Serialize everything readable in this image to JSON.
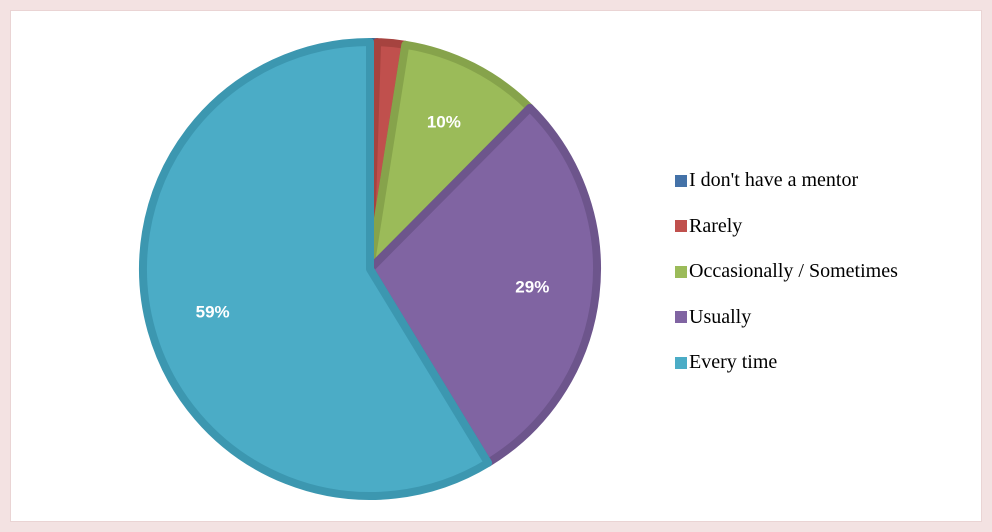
{
  "chart_data": {
    "type": "pie",
    "categories": [
      "I don't have a mentor",
      "Rarely",
      "Occasionally / Sometimes",
      "Usually",
      "Every time"
    ],
    "values": [
      0.5,
      2,
      10,
      29,
      59
    ],
    "labels": [
      "",
      "",
      "10%",
      "29%",
      "59%"
    ],
    "colors": [
      "#4472a8",
      "#c0504d",
      "#9bbb59",
      "#8064a2",
      "#4bacc6"
    ],
    "edge_colors": [
      "#37618f",
      "#a6433f",
      "#86a34b",
      "#6d558c",
      "#3c97b0"
    ],
    "start_angle_deg": 0,
    "direction": "clockwise",
    "legend_position": "right"
  }
}
